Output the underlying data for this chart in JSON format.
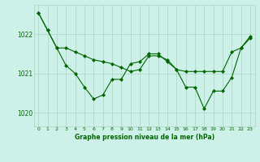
{
  "title": "Graphe pression niveau de la mer (hPa)",
  "bg_color": "#cdf0e8",
  "grid_color": "#b0d8c8",
  "line_color": "#006600",
  "x_ticks": [
    0,
    1,
    2,
    3,
    4,
    5,
    6,
    7,
    8,
    9,
    10,
    11,
    12,
    13,
    14,
    15,
    16,
    17,
    18,
    19,
    20,
    21,
    22,
    23
  ],
  "ylim": [
    1019.65,
    1022.75
  ],
  "yticks": [
    1020,
    1021,
    1022
  ],
  "series1_x": [
    0,
    1,
    2,
    3,
    4,
    5,
    6,
    7,
    8,
    9,
    10,
    11,
    12,
    13,
    14,
    15,
    16,
    17,
    18,
    19,
    20,
    21,
    22,
    23
  ],
  "series1_y": [
    1022.55,
    1022.1,
    1021.65,
    1021.65,
    1021.55,
    1021.45,
    1021.35,
    1021.3,
    1021.25,
    1021.15,
    1021.05,
    1021.1,
    1021.45,
    1021.45,
    1021.35,
    1021.1,
    1021.05,
    1021.05,
    1021.05,
    1021.05,
    1021.05,
    1021.55,
    1021.65,
    1021.95
  ],
  "series2_x": [
    0,
    1,
    2,
    3,
    4,
    5,
    6,
    7,
    8,
    9,
    10,
    11,
    12,
    13,
    14,
    15,
    16,
    17,
    18,
    19,
    20,
    21,
    22,
    23
  ],
  "series2_y": [
    1022.55,
    1022.1,
    1021.65,
    1021.2,
    1021.0,
    1020.65,
    1020.35,
    1020.45,
    1020.85,
    1020.85,
    1021.25,
    1021.3,
    1021.5,
    1021.5,
    1021.3,
    1021.1,
    1020.65,
    1020.65,
    1020.1,
    1020.55,
    1020.55,
    1020.9,
    1021.65,
    1021.9
  ]
}
